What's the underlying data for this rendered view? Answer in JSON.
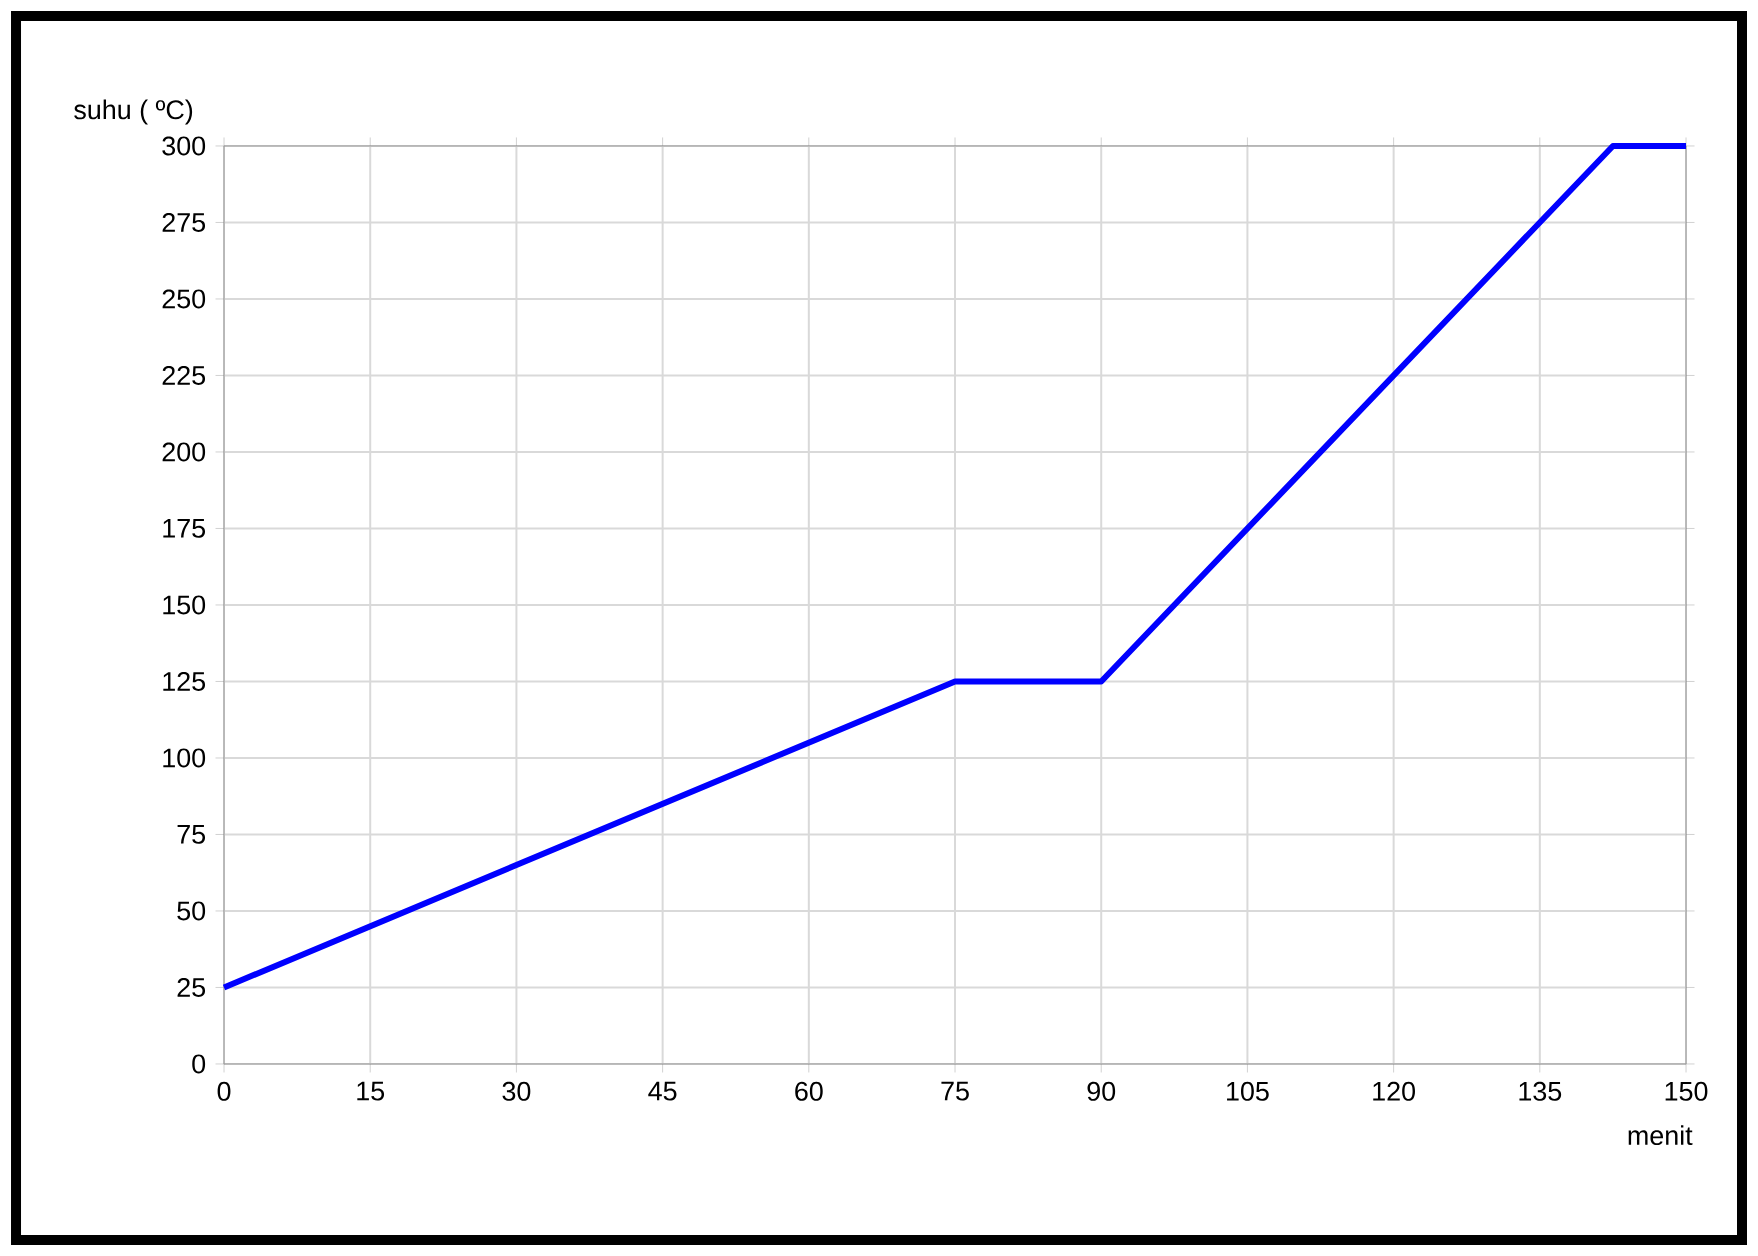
{
  "chart_data": {
    "type": "line",
    "xlabel": "menit",
    "ylabel": "suhu ( ºC)",
    "x": [
      0,
      75,
      90,
      142.5,
      150
    ],
    "series": [
      {
        "color": "#0000ff",
        "values": [
          25,
          125,
          125,
          300,
          300
        ]
      }
    ],
    "xlim": [
      0,
      150
    ],
    "ylim": [
      0,
      300
    ],
    "xticks": [
      0,
      15,
      30,
      45,
      60,
      75,
      90,
      105,
      120,
      135,
      150
    ],
    "yticks": [
      0,
      25,
      50,
      75,
      100,
      125,
      150,
      175,
      200,
      225,
      250,
      275,
      300
    ],
    "grid": true
  }
}
